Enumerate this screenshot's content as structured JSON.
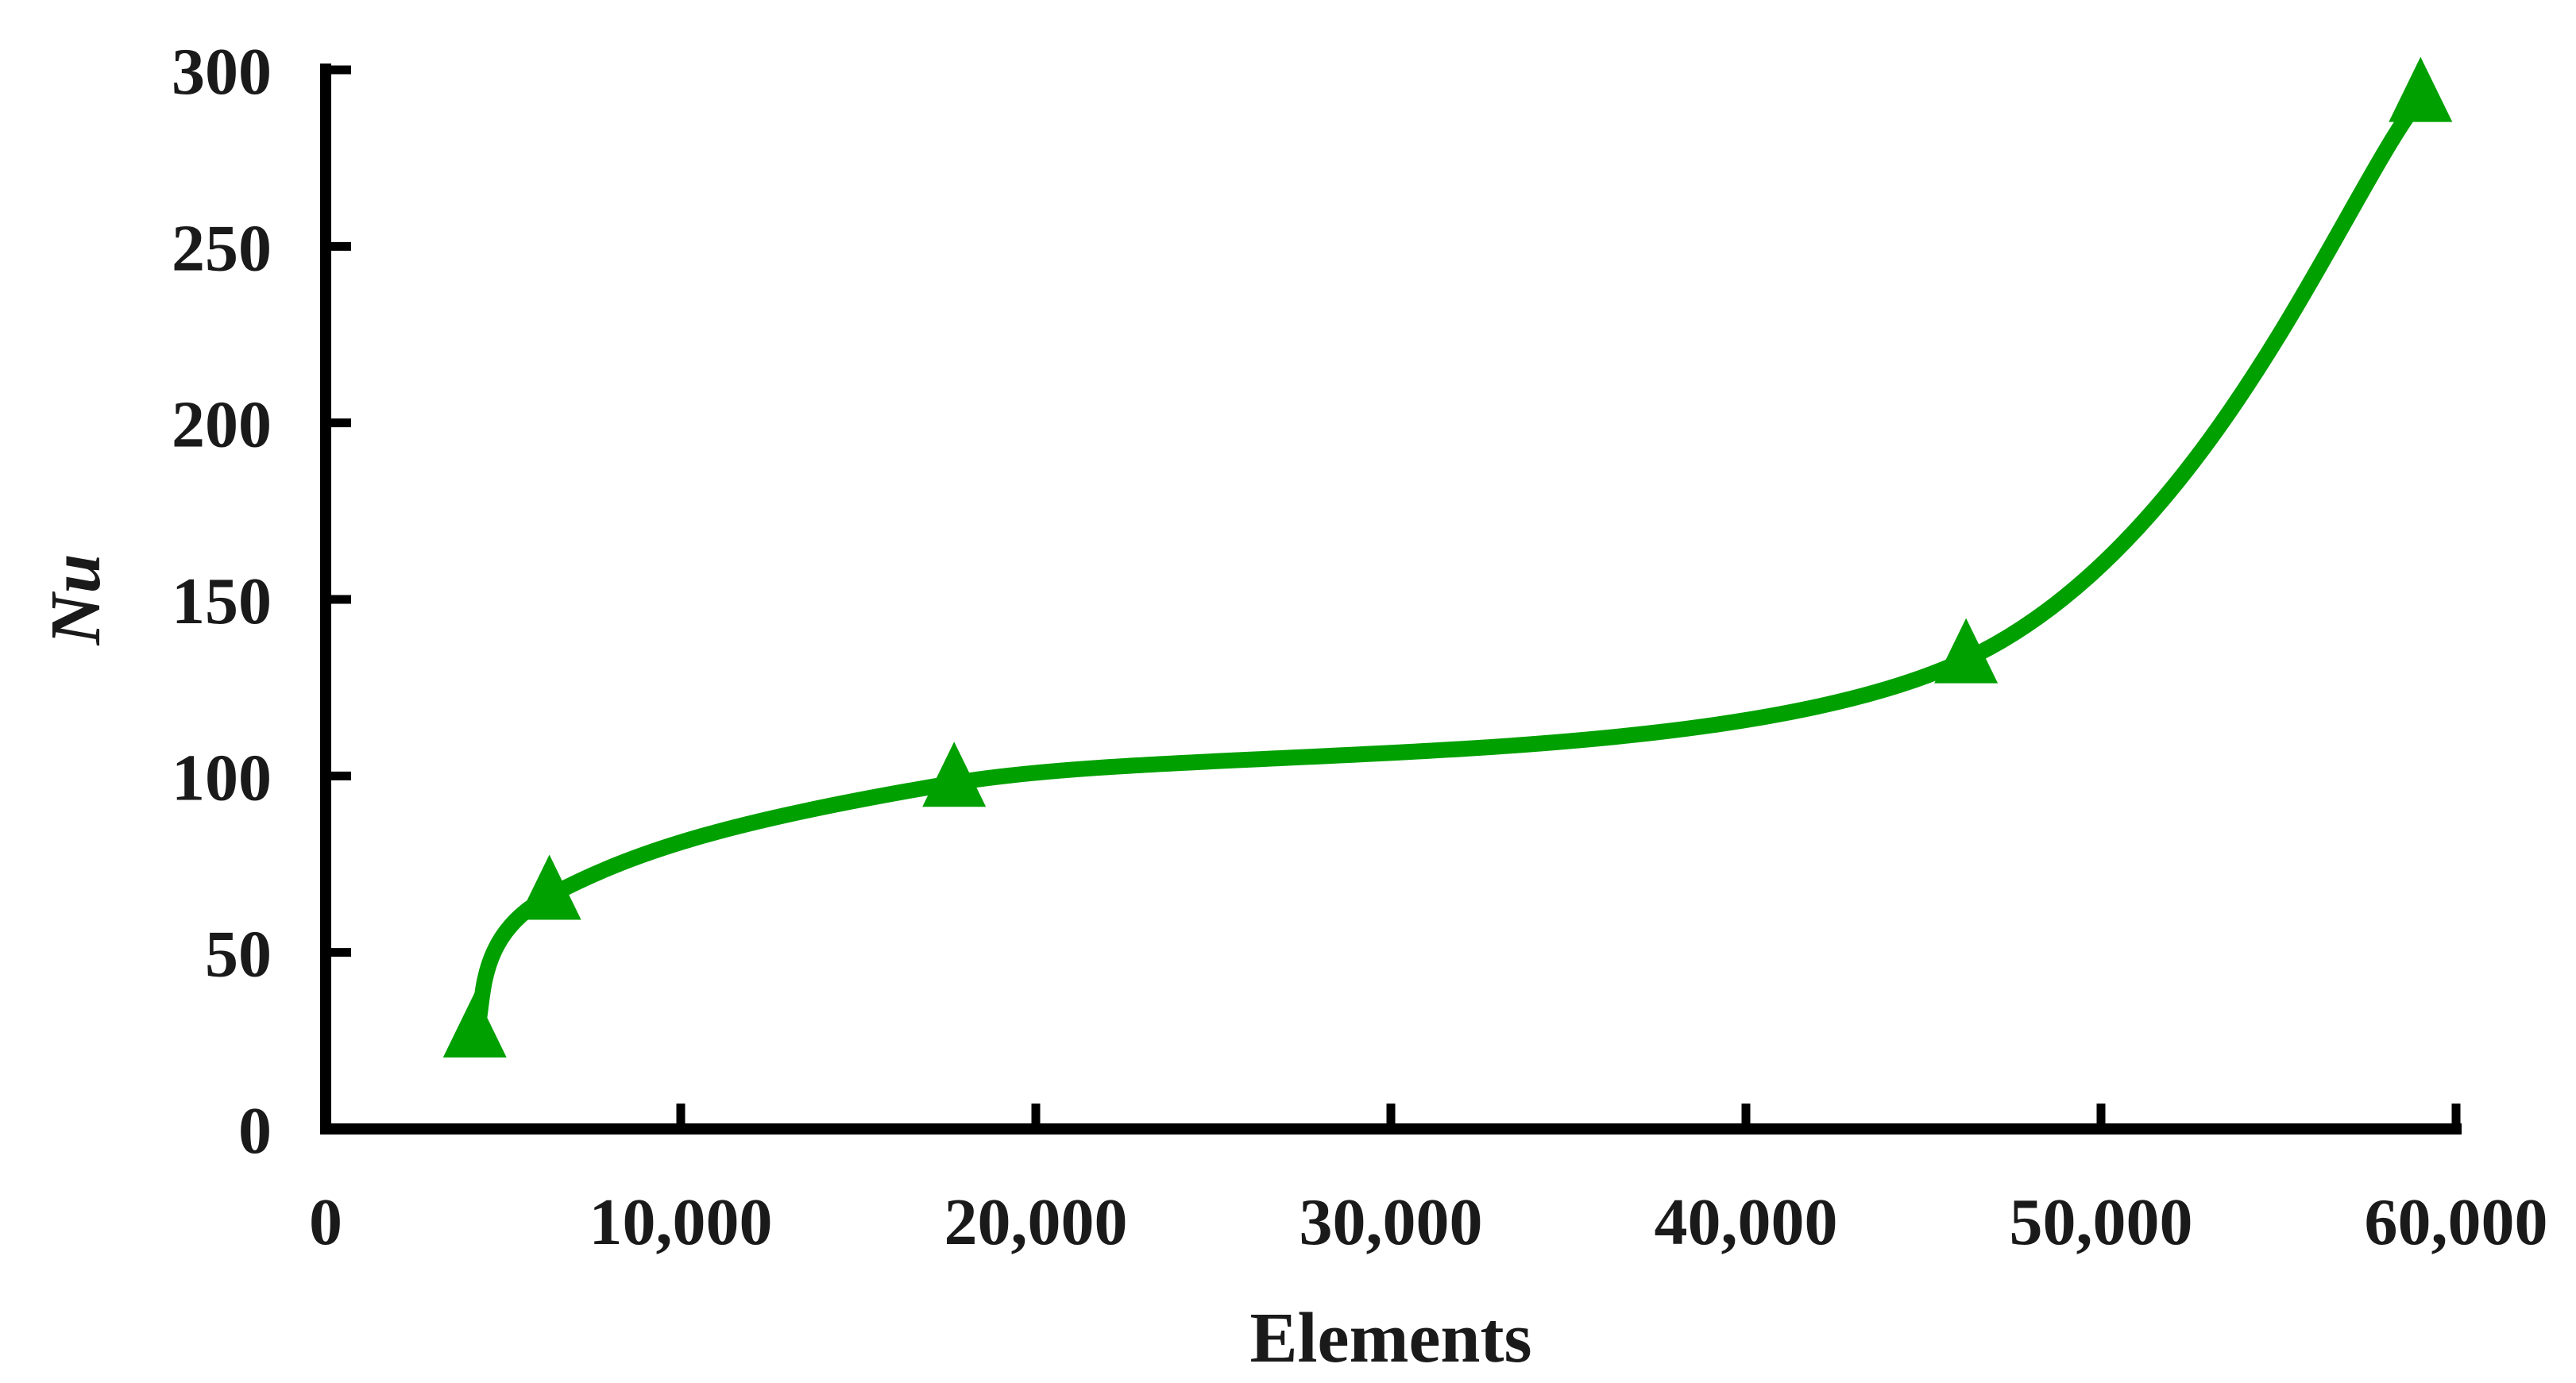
{
  "chart_data": {
    "type": "line",
    "title": "",
    "xlabel": "Elements",
    "ylabel": "Nu",
    "xlim": [
      0,
      60000
    ],
    "ylim": [
      0,
      300
    ],
    "x_ticks": [
      0,
      10000,
      20000,
      30000,
      40000,
      50000,
      60000
    ],
    "x_tick_labels": [
      "0",
      "10,000",
      "20,000",
      "30,000",
      "40,000",
      "50,000",
      "60,000"
    ],
    "y_ticks": [
      0,
      50,
      100,
      150,
      200,
      250,
      300
    ],
    "y_tick_labels": [
      "0",
      "50",
      "100",
      "150",
      "200",
      "250",
      "300"
    ],
    "grid": false,
    "legend": "none",
    "smooth": true,
    "marker": "triangle",
    "color": "#00a000",
    "series": [
      {
        "x": [
          4200,
          6300,
          17700,
          46200,
          59000
        ],
        "values": [
          27,
          66,
          98,
          133,
          292
        ]
      }
    ]
  }
}
